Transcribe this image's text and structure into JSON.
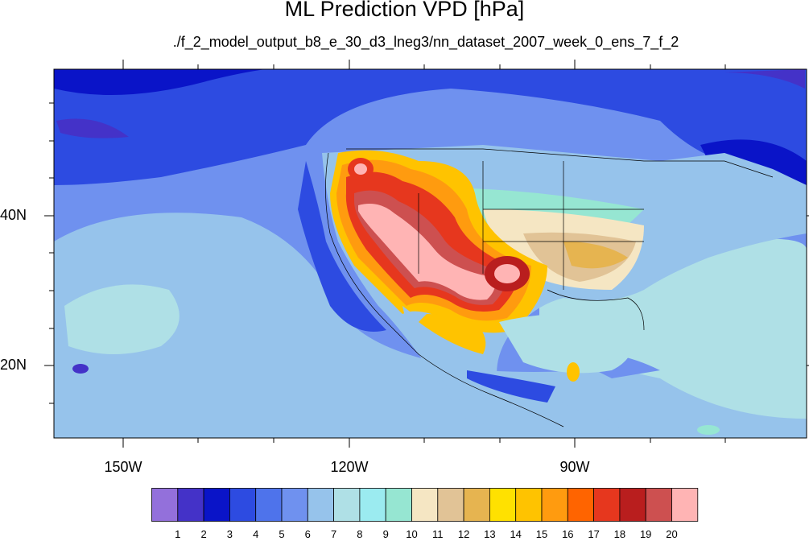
{
  "title": "ML Prediction VPD [hPa]",
  "subtitle": "./f_2_model_output_b8_e_30_d3_lneg3/nn_dataset_2007_week_0_ens_7_f_2",
  "lat_labels": [
    "40N",
    "20N"
  ],
  "lon_labels": [
    "150W",
    "120W",
    "90W"
  ],
  "colorbar": {
    "labels": [
      "1",
      "2",
      "3",
      "4",
      "5",
      "6",
      "7",
      "8",
      "9",
      "10",
      "11",
      "12",
      "13",
      "14",
      "15",
      "16",
      "17",
      "18",
      "19",
      "20"
    ],
    "colors": [
      "#9370db",
      "#4432c8",
      "#0a14c8",
      "#2d4be1",
      "#4e73eb",
      "#6f91ef",
      "#96c3eb",
      "#afe0e6",
      "#9bebf0",
      "#96e6d2",
      "#f5e6c3",
      "#e1c396",
      "#e6b450",
      "#ffe100",
      "#ffc300",
      "#ff9b0f",
      "#ff6400",
      "#e6371e",
      "#b91e1e",
      "#cd5050",
      "#ffb4b4"
    ]
  }
}
